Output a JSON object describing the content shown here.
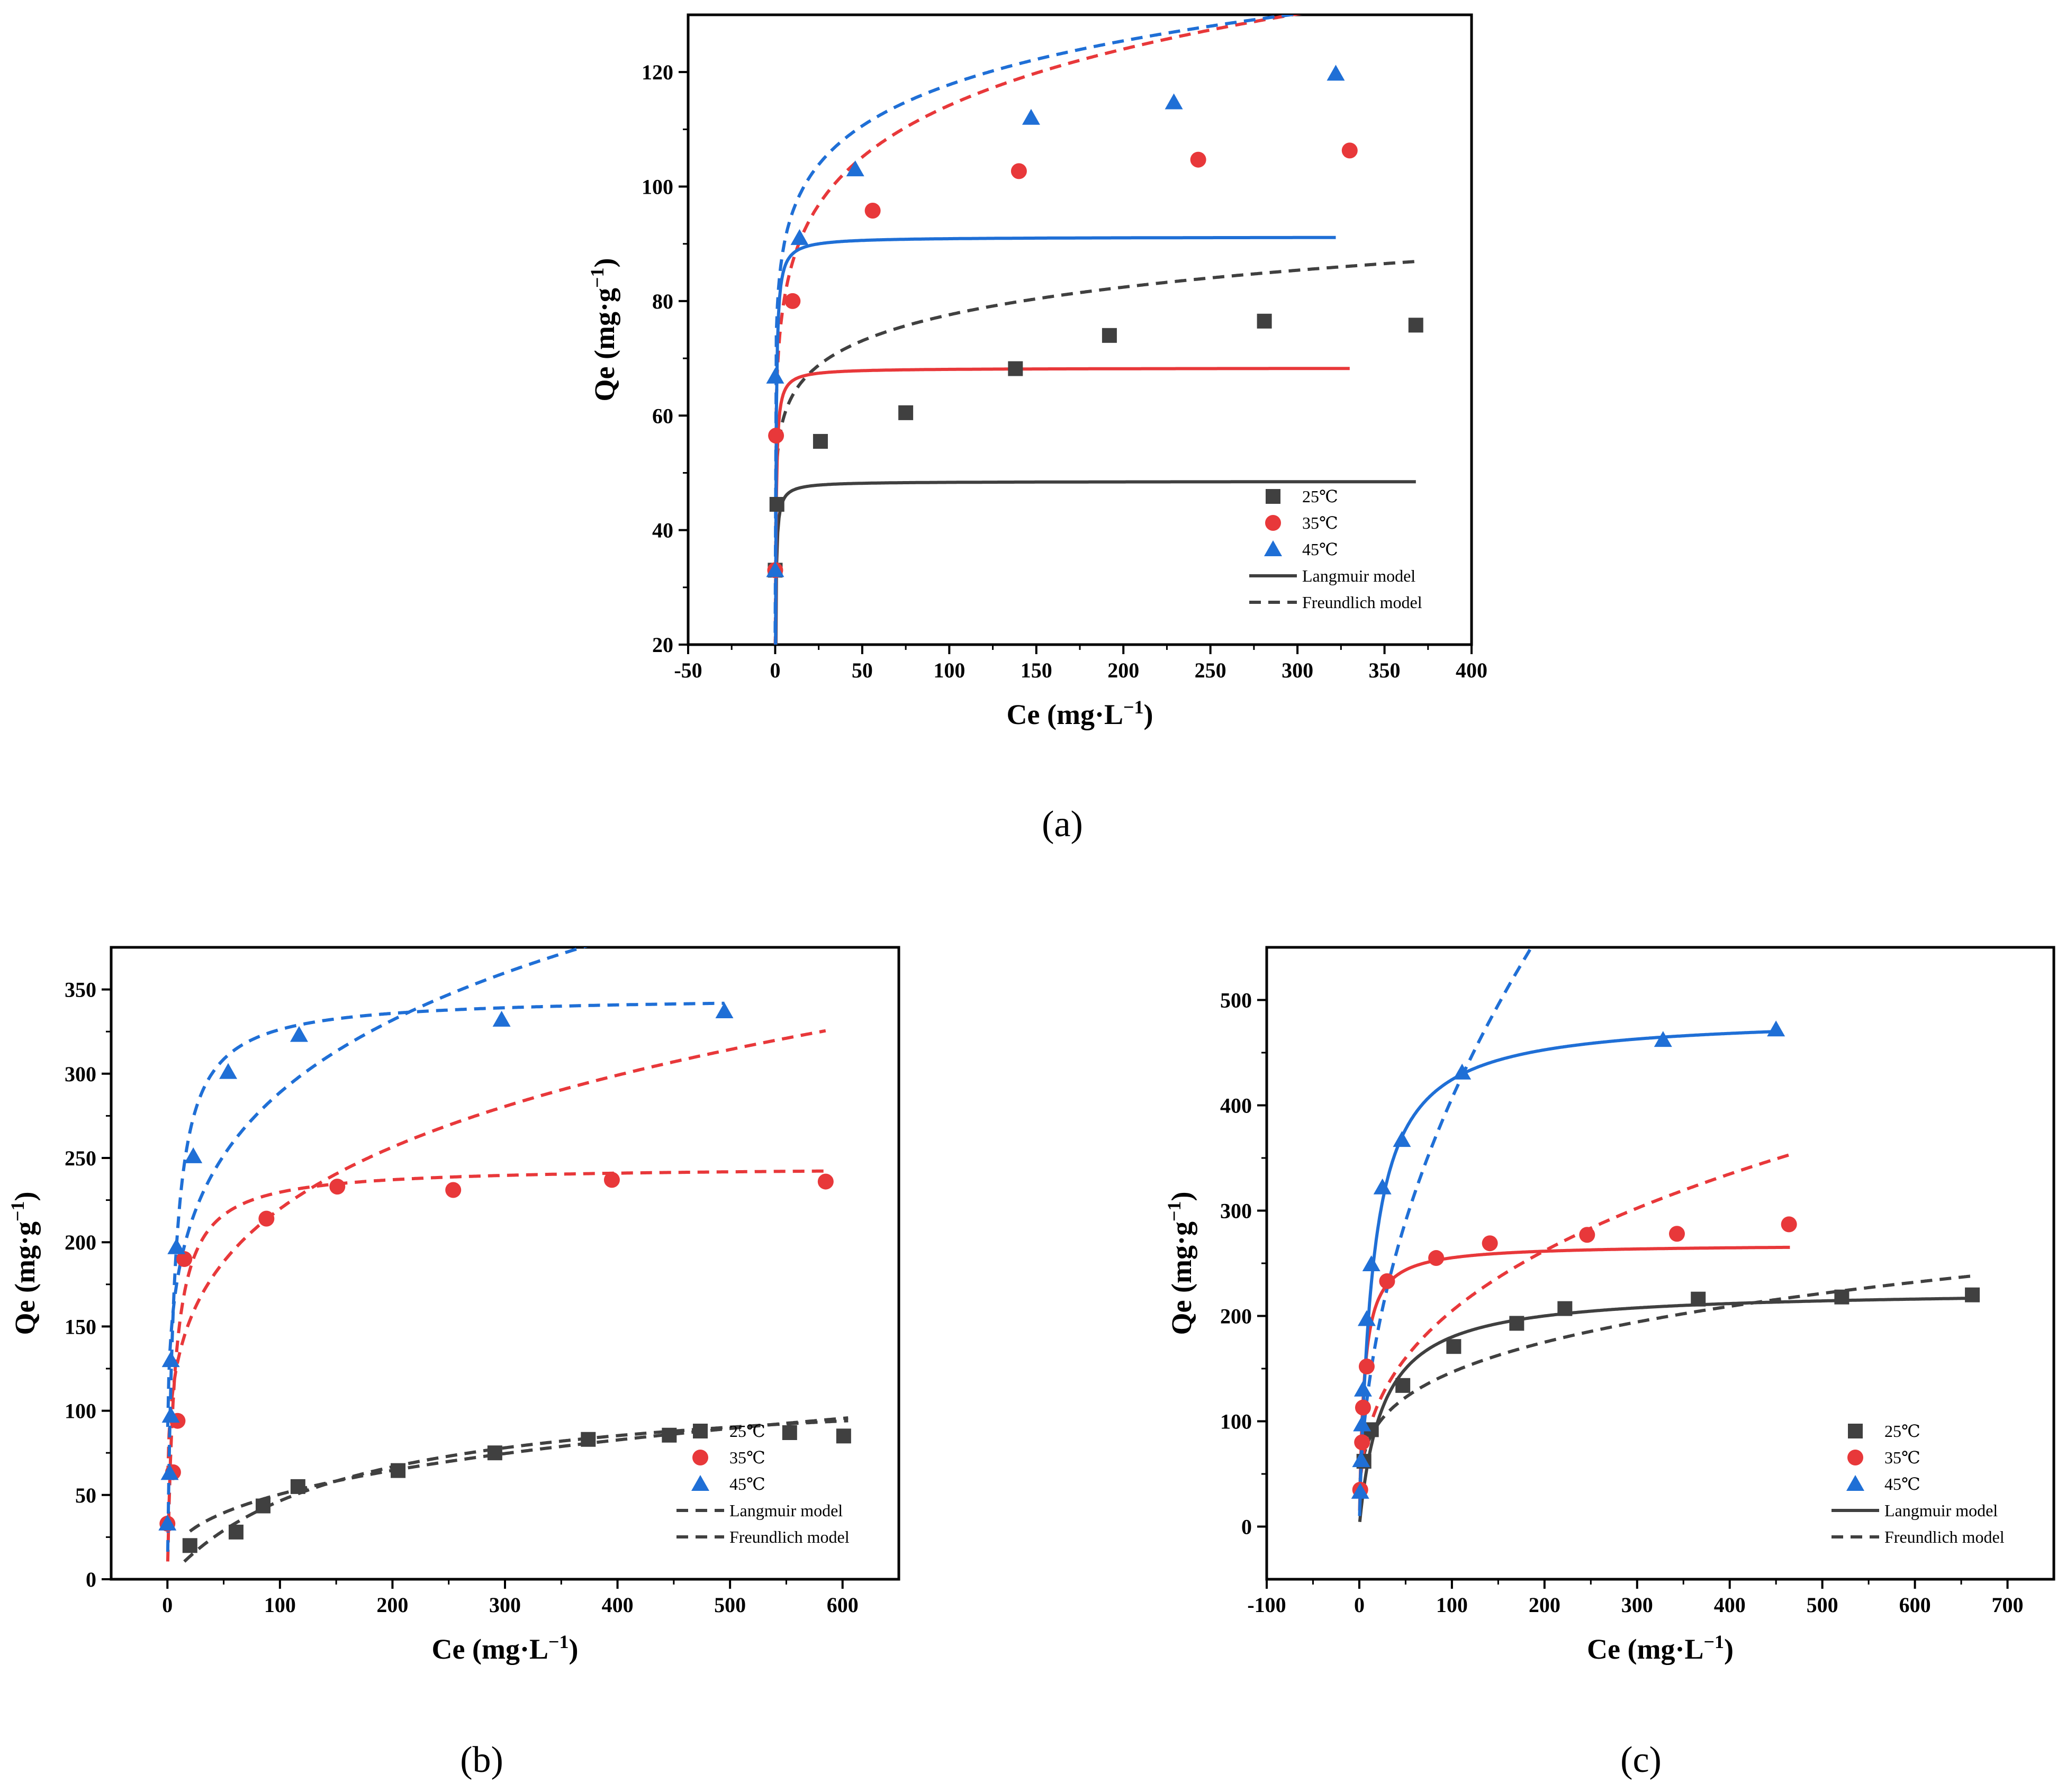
{
  "colors": {
    "t25": "#404040",
    "t35": "#e8383a",
    "t45": "#1f6fd6",
    "axis": "#000000"
  },
  "chart_data": [
    {
      "id": "a",
      "type": "scatter",
      "panel_label": "(a)",
      "title": "",
      "xlabel": "Ce (mg·L−1)",
      "ylabel": "Qe (mg·g−1)",
      "xlim": [
        -50,
        400
      ],
      "ylim": [
        20,
        130
      ],
      "xticks": [
        -50,
        0,
        50,
        100,
        150,
        200,
        250,
        300,
        350,
        400
      ],
      "yticks": [
        20,
        40,
        60,
        80,
        100,
        120
      ],
      "legend_position": "bottom-right",
      "legend": {
        "series": [
          "25℃",
          "35℃",
          "45℃"
        ],
        "langmuir": "Langmuir model",
        "freundlich": "Freundlich model",
        "langmuir_style": "solid",
        "freundlich_style": "dashed"
      },
      "series": [
        {
          "name": "25℃",
          "color_key": "t25",
          "marker": "square",
          "points": [
            [
              0,
              33
            ],
            [
              1,
              44.5
            ],
            [
              26,
              55.5
            ],
            [
              75,
              60.5
            ],
            [
              138,
              68.2
            ],
            [
              192,
              74
            ],
            [
              281,
              76.5
            ],
            [
              368,
              75.8
            ]
          ],
          "langmuir": {
            "qm": 48.5,
            "kl": 3,
            "xmax": 368
          },
          "freundlich": {
            "kf": 52,
            "n": 11.5,
            "xmax": 370
          }
        },
        {
          "name": "35℃",
          "color_key": "t35",
          "marker": "circle",
          "points": [
            [
              0,
              33
            ],
            [
              0.5,
              56.5
            ],
            [
              10,
              80
            ],
            [
              56,
              95.8
            ],
            [
              140,
              102.7
            ],
            [
              243,
              104.7
            ],
            [
              330,
              106.3
            ]
          ],
          "langmuir": {
            "qm": 68.3,
            "kl": 3,
            "xmax": 330
          },
          "freundlich": {
            "kf": 66,
            "n": 8.4,
            "xmax": 330
          }
        },
        {
          "name": "45℃",
          "color_key": "t45",
          "marker": "triangle",
          "points": [
            [
              0,
              33
            ],
            [
              0,
              66.8
            ],
            [
              14,
              91
            ],
            [
              46,
              103
            ],
            [
              147,
              112
            ],
            [
              229,
              114.7
            ],
            [
              322,
              119.7
            ]
          ],
          "langmuir": {
            "qm": 91.2,
            "kl": 3,
            "xmax": 322
          },
          "freundlich": {
            "kf": 77.5,
            "n": 11,
            "xmax": 322
          }
        }
      ]
    },
    {
      "id": "b",
      "type": "scatter",
      "panel_label": "(b)",
      "title": "",
      "xlabel": "Ce (mg·L−1)",
      "ylabel": "Qe (mg·g−1)",
      "xlim": [
        -50,
        650
      ],
      "ylim": [
        0,
        375
      ],
      "xticks": [
        0,
        100,
        200,
        300,
        400,
        500,
        600
      ],
      "yticks": [
        0,
        50,
        100,
        150,
        200,
        250,
        300,
        350
      ],
      "legend_position": "bottom-right",
      "legend": {
        "series": [
          "25℃",
          "35℃",
          "45℃"
        ],
        "langmuir": "Langmuir model",
        "freundlich": "Freundlich model",
        "langmuir_style": "dashed",
        "freundlich_style": "dashed"
      },
      "series": [
        {
          "name": "25℃",
          "color_key": "t25",
          "marker": "square",
          "points": [
            [
              20,
              20
            ],
            [
              61,
              28
            ],
            [
              85,
              43.5
            ],
            [
              116,
              55
            ],
            [
              205,
              64.5
            ],
            [
              291,
              75
            ],
            [
              374,
              83
            ],
            [
              446,
              85.5
            ],
            [
              553,
              87
            ],
            [
              601,
              85
            ]
          ],
          "langmuir": {
            "qm": 118,
            "kl": 0.0065,
            "xmin": 15,
            "xmax": 605
          },
          "freundlich": {
            "kf": 9.8,
            "n": 2.81,
            "xmin": 20,
            "xmax": 605
          }
        },
        {
          "name": "35℃",
          "color_key": "t35",
          "marker": "circle",
          "points": [
            [
              0,
              33
            ],
            [
              5,
              63.5
            ],
            [
              9,
              94
            ],
            [
              15,
              190
            ],
            [
              88,
              214
            ],
            [
              151,
              233
            ],
            [
              254,
              231
            ],
            [
              395,
              237
            ],
            [
              585,
              236
            ]
          ],
          "langmuir": {
            "qm": 245,
            "kl": 0.15,
            "xmin": 0.3,
            "xmax": 585
          },
          "freundlich": {
            "kf": 79,
            "n": 4.5,
            "xmin": 0.3,
            "xmax": 585
          }
        },
        {
          "name": "45℃",
          "color_key": "t45",
          "marker": "triangle",
          "points": [
            [
              0,
              33
            ],
            [
              2,
              63
            ],
            [
              3,
              97
            ],
            [
              3,
              130
            ],
            [
              8,
              197
            ],
            [
              23,
              251
            ],
            [
              54,
              301
            ],
            [
              117,
              323
            ],
            [
              297,
              332
            ],
            [
              495,
              337
            ]
          ],
          "langmuir": {
            "qm": 346,
            "kl": 0.165,
            "xmin": 0.3,
            "xmax": 495
          },
          "freundlich": {
            "kf": 115,
            "n": 5,
            "xmin": 0.3,
            "xmax": 495
          }
        }
      ]
    },
    {
      "id": "c",
      "type": "scatter",
      "panel_label": "(c)",
      "title": "",
      "xlabel": "Ce (mg·L−1)",
      "ylabel": "Qe (mg·g−1)",
      "xlim": [
        -100,
        750
      ],
      "ylim": [
        -50,
        550
      ],
      "xticks": [
        -100,
        0,
        100,
        200,
        300,
        400,
        500,
        600,
        700
      ],
      "yticks": [
        0,
        100,
        200,
        300,
        400,
        500
      ],
      "legend_position": "bottom-right",
      "legend": {
        "series": [
          "25℃",
          "35℃",
          "45℃"
        ],
        "langmuir": "Langmuir model",
        "freundlich": "Freundlich model",
        "langmuir_style": "solid",
        "freundlich_style": "dashed"
      },
      "series": [
        {
          "name": "25℃",
          "color_key": "t25",
          "marker": "square",
          "points": [
            [
              5,
              62
            ],
            [
              13,
              92
            ],
            [
              47,
              134
            ],
            [
              102,
              171
            ],
            [
              170,
              193
            ],
            [
              222,
              207
            ],
            [
              366,
              216
            ],
            [
              521,
              218
            ],
            [
              662,
              220
            ]
          ],
          "langmuir": {
            "qm": 225,
            "kl": 0.04,
            "xmin": 0.5,
            "xmax": 662
          },
          "freundlich": {
            "kf": 45,
            "n": 3.9,
            "xmin": 1,
            "xmax": 662
          }
        },
        {
          "name": "35℃",
          "color_key": "t35",
          "marker": "circle",
          "points": [
            [
              1,
              35
            ],
            [
              3,
              80
            ],
            [
              4,
              113
            ],
            [
              8,
              152
            ],
            [
              30,
              233
            ],
            [
              83,
              255
            ],
            [
              141,
              269
            ],
            [
              246,
              277
            ],
            [
              343,
              278
            ],
            [
              464,
              287
            ]
          ],
          "langmuir": {
            "qm": 268,
            "kl": 0.2,
            "xmin": 0.3,
            "xmax": 465
          },
          "freundlich": {
            "kf": 40,
            "n": 2.82,
            "xmin": 2,
            "xmax": 465
          }
        },
        {
          "name": "45℃",
          "color_key": "t45",
          "marker": "triangle",
          "points": [
            [
              1,
              33
            ],
            [
              2,
              63
            ],
            [
              3,
              97
            ],
            [
              4,
              130
            ],
            [
              8,
              197
            ],
            [
              13,
              249
            ],
            [
              25,
              322
            ],
            [
              46,
              367
            ],
            [
              111,
              431
            ],
            [
              328,
              462
            ],
            [
              450,
              472
            ]
          ],
          "langmuir": {
            "qm": 485,
            "kl": 0.07,
            "xmin": 0.3,
            "xmax": 450
          },
          "freundlich": {
            "kf": 43,
            "n": 2.05,
            "xmin": 1,
            "xmax": 600
          }
        }
      ]
    }
  ]
}
